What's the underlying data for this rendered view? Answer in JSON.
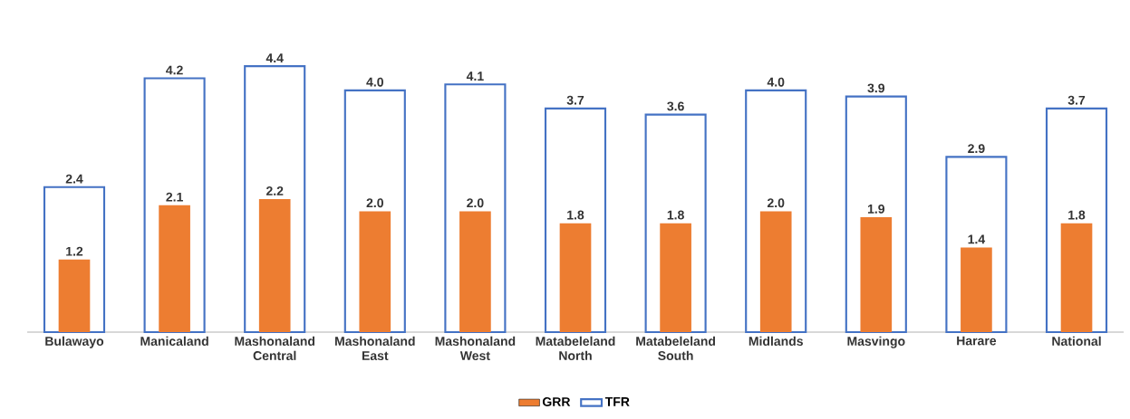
{
  "chart_data": {
    "type": "bar",
    "categories": [
      "Bulawayo",
      "Manicaland",
      "Mashonaland Central",
      "Mashonaland East",
      "Mashonaland West",
      "Matabeleland North",
      "Matabeleland South",
      "Midlands",
      "Masvingo",
      "Harare",
      "National"
    ],
    "series": [
      {
        "name": "GRR",
        "color": "#ed7d31",
        "values": [
          1.2,
          2.1,
          2.2,
          2.0,
          2.0,
          1.8,
          1.8,
          2.0,
          1.9,
          1.4,
          1.8
        ],
        "value_labels": [
          "1.2",
          "2.1",
          "2.2",
          "2.0",
          "2.0",
          "1.8",
          "1.8",
          "2.0",
          "1.9",
          "1.4",
          "1.8"
        ]
      },
      {
        "name": "TFR",
        "color": "#4472c4",
        "values": [
          2.4,
          4.2,
          4.4,
          4.0,
          4.1,
          3.7,
          3.6,
          4.0,
          3.9,
          2.9,
          3.7
        ],
        "value_labels": [
          "2.4",
          "4.2",
          "4.4",
          "4.0",
          "4.1",
          "3.7",
          "3.6",
          "4.0",
          "3.9",
          "2.9",
          "3.7"
        ]
      }
    ],
    "legend": "bottom"
  }
}
